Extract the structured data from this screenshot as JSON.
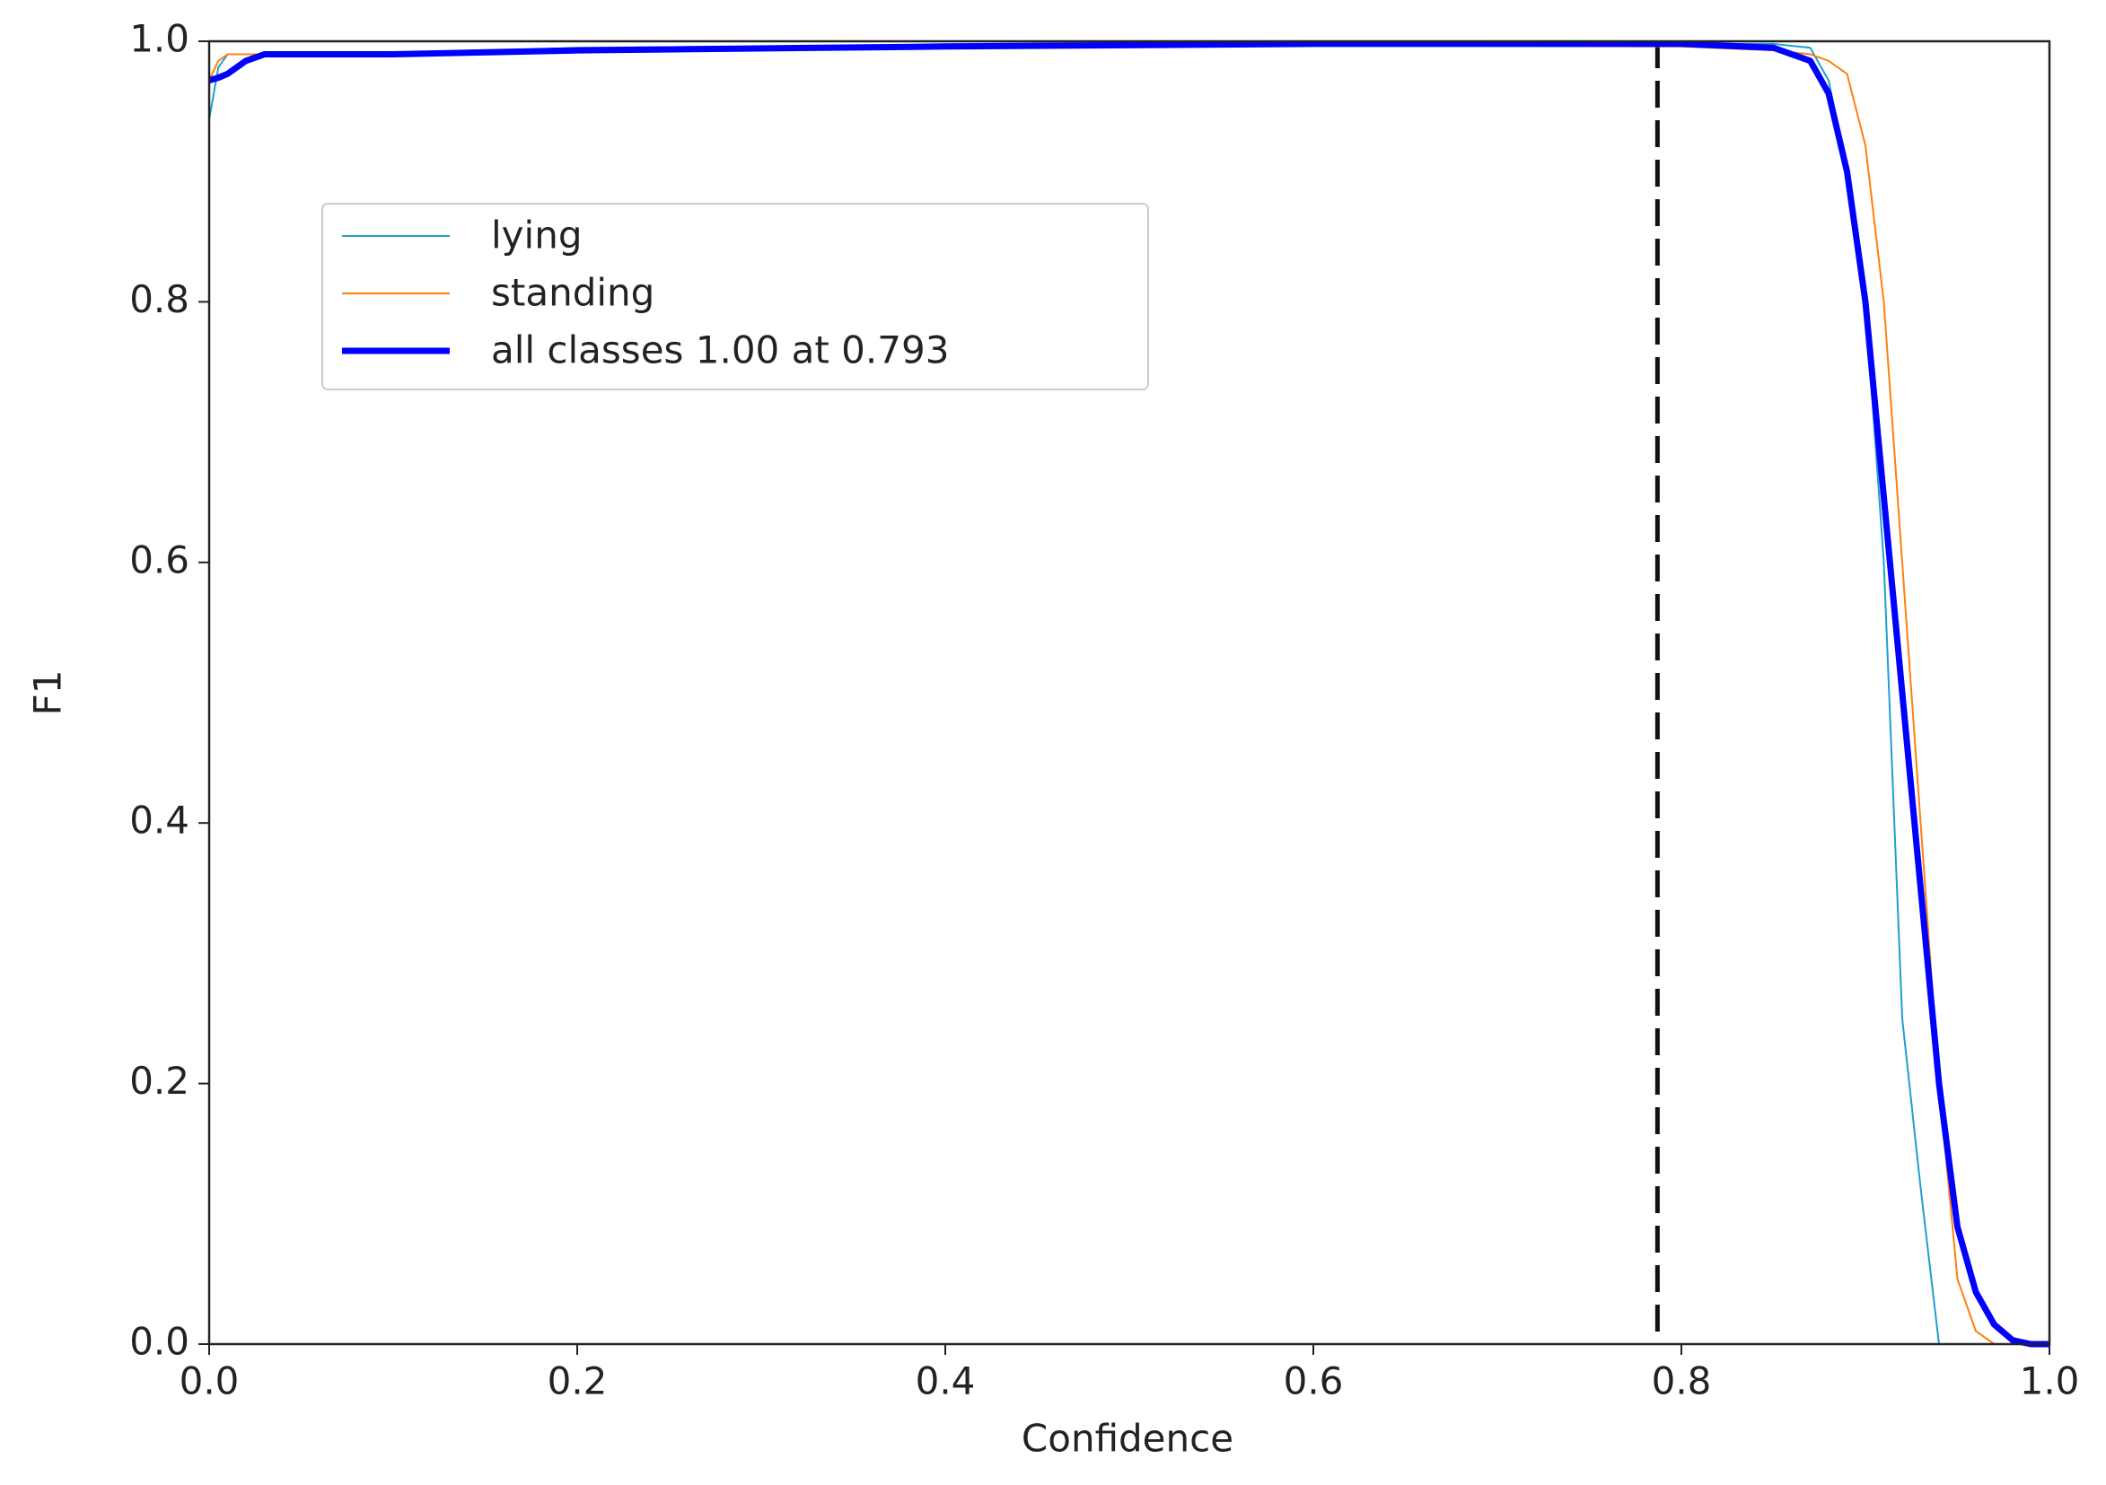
{
  "chart_data": {
    "type": "line",
    "xlabel": "Confidence",
    "ylabel": "F1",
    "x": [
      0,
      0.005,
      0.01,
      0.02,
      0.03,
      0.05,
      0.1,
      0.2,
      0.4,
      0.6,
      0.8,
      0.85,
      0.87,
      0.88,
      0.89,
      0.9,
      0.91,
      0.92,
      0.93,
      0.94,
      0.95,
      0.96,
      0.97,
      0.98,
      0.99,
      1.0
    ],
    "series": [
      {
        "name": "lying",
        "color": "#1f9fd0",
        "width": 2,
        "values": [
          0.94,
          0.98,
          0.99,
          0.99,
          0.99,
          0.99,
          0.99,
          0.995,
          0.997,
          0.998,
          0.998,
          0.998,
          0.995,
          0.97,
          0.9,
          0.8,
          0.6,
          0.25,
          0.12,
          0,
          0,
          0,
          0,
          0,
          0,
          0
        ]
      },
      {
        "name": "standing",
        "color": "#ff7f0e",
        "width": 2,
        "values": [
          0.97,
          0.985,
          0.99,
          0.99,
          0.99,
          0.99,
          0.99,
          0.993,
          0.996,
          0.997,
          0.996,
          0.993,
          0.99,
          0.985,
          0.975,
          0.92,
          0.8,
          0.6,
          0.4,
          0.2,
          0.05,
          0.01,
          0,
          0,
          0,
          0
        ]
      },
      {
        "name": "all classes 1.00 at 0.793",
        "color": "#0000ff",
        "width": 7,
        "values": [
          0.97,
          0.972,
          0.975,
          0.985,
          0.99,
          0.99,
          0.99,
          0.993,
          0.996,
          0.998,
          0.998,
          0.995,
          0.985,
          0.96,
          0.9,
          0.8,
          0.65,
          0.5,
          0.35,
          0.2,
          0.09,
          0.04,
          0.015,
          0.003,
          0,
          0
        ]
      }
    ],
    "vline_x": 0.787,
    "xlim": [
      0,
      1
    ],
    "ylim": [
      0,
      1
    ],
    "xticks": [
      {
        "value": 0,
        "label": "0.0"
      },
      0.2,
      0.4,
      0.6,
      0.8,
      {
        "value": 1,
        "label": "1.0"
      }
    ],
    "yticks": [
      {
        "value": 0,
        "label": "0.0"
      },
      0.2,
      0.4,
      0.6,
      0.8,
      {
        "value": 1,
        "label": "1.0"
      }
    ],
    "legend": "upper left"
  }
}
